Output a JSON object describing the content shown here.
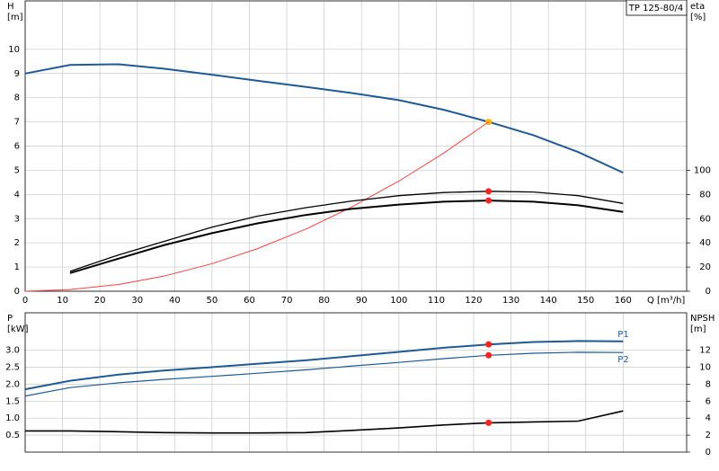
{
  "title": "TP 125-80/4",
  "chart_data": [
    {
      "type": "line",
      "x_label": "Q [m³/h]",
      "y_label": "H",
      "y_unit": "[m]",
      "y2_label": "eta",
      "y2_unit": "[%]",
      "x": [
        0,
        12,
        25,
        37,
        50,
        62,
        75,
        87,
        100,
        112,
        124,
        136,
        148,
        160
      ],
      "xlim": [
        0,
        177
      ],
      "xticks": [
        0,
        10,
        20,
        30,
        40,
        50,
        60,
        70,
        80,
        90,
        100,
        110,
        120,
        130,
        140,
        150,
        160
      ],
      "ylim": [
        0,
        12
      ],
      "yticks": [
        0,
        1,
        2,
        3,
        4,
        5,
        6,
        7,
        8,
        9,
        10
      ],
      "y2lim": [
        0,
        240
      ],
      "y2ticks": [
        0,
        20,
        40,
        60,
        80,
        100
      ],
      "grid": true,
      "operating_point": 124,
      "series": [
        {
          "color": "#1f5a96",
          "line_width": 2,
          "marker_color": "#ffb300",
          "values": [
            9.0,
            9.35,
            9.38,
            9.2,
            8.95,
            8.7,
            8.45,
            8.2,
            7.9,
            7.5,
            7.0,
            6.45,
            5.75,
            4.9
          ]
        },
        {
          "color": "#ff4040",
          "line_width": 1,
          "values": [
            0,
            0.07,
            0.28,
            0.62,
            1.14,
            1.75,
            2.56,
            3.45,
            4.55,
            5.71,
            7.0,
            null,
            null,
            null
          ]
        },
        {
          "color": "#000000",
          "line_width": 1.3,
          "axis": "y2",
          "marker_color": "#ff2020",
          "values": [
            null,
            16.4,
            30,
            41,
            53,
            62,
            69,
            74.4,
            79,
            81.6,
            82.6,
            82,
            79,
            72.6
          ]
        },
        {
          "color": "#000000",
          "line_width": 2,
          "axis": "y2",
          "marker_color": "#ff2020",
          "values": [
            null,
            15,
            27,
            38,
            48,
            56,
            63,
            68,
            71.6,
            74,
            75,
            74,
            71,
            65.6
          ]
        }
      ]
    },
    {
      "type": "line",
      "y_label": "P",
      "y_unit": "[kW]",
      "y2_label": "NPSH",
      "y2_unit": "[m]",
      "x": [
        0,
        12,
        25,
        37,
        50,
        62,
        75,
        87,
        100,
        112,
        124,
        136,
        148,
        160
      ],
      "xlim": [
        0,
        177
      ],
      "ylim": [
        0,
        4.1
      ],
      "yticks": [
        0.5,
        {
          "value": 1,
          "label": "1.0"
        },
        1.5,
        {
          "value": 2,
          "label": "2.0"
        },
        2.5,
        {
          "value": 3,
          "label": "3.0"
        }
      ],
      "y2lim": [
        0,
        16.4
      ],
      "y2ticks": [
        0,
        2,
        4,
        6,
        8,
        10,
        12
      ],
      "grid": true,
      "operating_point": 124,
      "series": [
        {
          "name": "P1",
          "color": "#1f5a96",
          "line_width": 2,
          "marker_color": "#ff2020",
          "values": [
            1.85,
            2.1,
            2.28,
            2.4,
            2.5,
            2.6,
            2.7,
            2.82,
            2.95,
            3.07,
            3.17,
            3.24,
            3.27,
            3.26
          ]
        },
        {
          "name": "P2",
          "color": "#1f5a96",
          "line_width": 1.2,
          "marker_color": "#ff2020",
          "values": [
            1.65,
            1.9,
            2.04,
            2.14,
            2.23,
            2.32,
            2.42,
            2.53,
            2.64,
            2.75,
            2.85,
            2.91,
            2.94,
            2.93
          ]
        },
        {
          "color": "#000000",
          "line_width": 1.6,
          "axis": "y2",
          "marker_color": "#ff2020",
          "values": [
            2.5,
            2.5,
            2.4,
            2.3,
            2.25,
            2.25,
            2.3,
            2.55,
            2.85,
            3.2,
            3.45,
            3.55,
            3.65,
            4.85
          ]
        }
      ]
    }
  ]
}
